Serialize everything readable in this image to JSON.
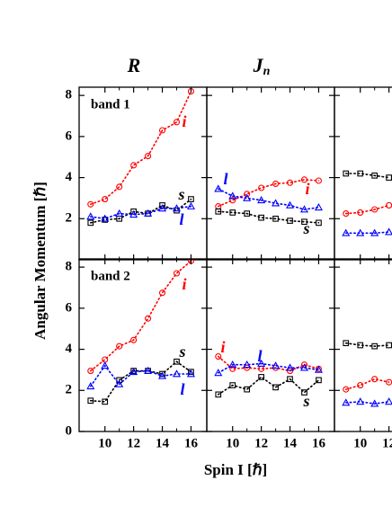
{
  "figure": {
    "ylabel": "Angular Momentum [ℏ]",
    "xlabel": "Spin I [ℏ]"
  },
  "chart_data": [
    {
      "type": "line",
      "title": "R",
      "annotation": "band 1",
      "x": [
        9,
        10,
        11,
        12,
        13,
        14,
        15,
        16
      ],
      "xlim": [
        8.2,
        17.1
      ],
      "xticks": [
        10,
        12,
        14,
        16
      ],
      "ylim": [
        0,
        8.4
      ],
      "yticks": [
        2,
        4,
        6,
        8
      ],
      "series": [
        {
          "name": "i",
          "color": "#ff0000",
          "marker": "circle",
          "values": [
            2.7,
            2.95,
            3.55,
            4.6,
            5.05,
            6.3,
            6.7,
            8.2
          ]
        },
        {
          "name": "s",
          "color": "#000000",
          "marker": "square",
          "values": [
            1.8,
            1.95,
            2.0,
            2.35,
            2.25,
            2.65,
            2.4,
            2.95
          ]
        },
        {
          "name": "l",
          "color": "#0000ff",
          "marker": "triangle",
          "values": [
            2.1,
            2.0,
            2.25,
            2.2,
            2.25,
            2.5,
            2.5,
            2.6
          ]
        }
      ]
    },
    {
      "type": "line",
      "title": "J",
      "title_subscript": "n",
      "x": [
        9,
        10,
        11,
        12,
        13,
        14,
        15,
        16
      ],
      "xlim": [
        8.2,
        17.1
      ],
      "xticks": [
        10,
        12,
        14,
        16
      ],
      "ylim": [
        0,
        8.4
      ],
      "yticks": [
        2,
        4,
        6,
        8
      ],
      "series": [
        {
          "name": "i",
          "color": "#ff0000",
          "marker": "circle",
          "values": [
            2.6,
            2.9,
            3.2,
            3.5,
            3.7,
            3.75,
            3.9,
            3.85
          ]
        },
        {
          "name": "s",
          "color": "#000000",
          "marker": "square",
          "values": [
            2.35,
            2.3,
            2.25,
            2.05,
            2.0,
            1.9,
            1.85,
            1.8
          ]
        },
        {
          "name": "l",
          "color": "#0000ff",
          "marker": "triangle",
          "values": [
            3.45,
            3.1,
            3.0,
            2.9,
            2.75,
            2.65,
            2.45,
            2.55
          ]
        }
      ]
    },
    {
      "type": "line",
      "x": [
        9,
        10,
        11,
        12
      ],
      "xlim": [
        8.2,
        17.1
      ],
      "xticks": [
        10,
        12
      ],
      "ylim": [
        0,
        8.4
      ],
      "yticks": [
        2,
        4,
        6,
        8
      ],
      "series": [
        {
          "color": "#ff0000",
          "marker": "circle",
          "values": [
            2.25,
            2.3,
            2.45,
            2.65
          ]
        },
        {
          "color": "#000000",
          "marker": "square",
          "values": [
            4.2,
            4.2,
            4.1,
            4.0
          ]
        },
        {
          "color": "#0000ff",
          "marker": "triangle",
          "values": [
            1.3,
            1.3,
            1.3,
            1.35
          ]
        }
      ]
    },
    {
      "type": "line",
      "annotation": "band 2",
      "x": [
        9,
        10,
        11,
        12,
        13,
        14,
        15,
        16
      ],
      "xlim": [
        8.2,
        17.1
      ],
      "xticks": [
        10,
        12,
        14,
        16
      ],
      "ylim": [
        0,
        8.4
      ],
      "yticks": [
        0,
        2,
        4,
        6,
        8
      ],
      "series": [
        {
          "name": "i",
          "color": "#ff0000",
          "marker": "circle",
          "values": [
            2.95,
            3.5,
            4.15,
            4.45,
            5.5,
            6.75,
            7.7,
            8.3
          ]
        },
        {
          "name": "s",
          "color": "#000000",
          "marker": "square",
          "values": [
            1.5,
            1.45,
            2.5,
            2.95,
            2.95,
            2.8,
            3.4,
            2.9
          ]
        },
        {
          "name": "l",
          "color": "#0000ff",
          "marker": "triangle",
          "values": [
            2.2,
            3.2,
            2.3,
            2.9,
            2.95,
            2.7,
            2.8,
            2.8
          ]
        }
      ]
    },
    {
      "type": "line",
      "x": [
        9,
        10,
        11,
        12,
        13,
        14,
        15,
        16
      ],
      "xlim": [
        8.2,
        17.1
      ],
      "xticks": [
        10,
        12,
        14,
        16
      ],
      "ylim": [
        0,
        8.4
      ],
      "yticks": [
        0,
        2,
        4,
        6,
        8
      ],
      "series": [
        {
          "name": "i",
          "color": "#ff0000",
          "marker": "circle",
          "values": [
            3.65,
            3.05,
            3.1,
            3.05,
            3.1,
            2.95,
            3.25,
            3.05
          ]
        },
        {
          "name": "s",
          "color": "#000000",
          "marker": "square",
          "values": [
            1.8,
            2.25,
            2.05,
            2.65,
            2.15,
            2.55,
            1.9,
            2.5
          ]
        },
        {
          "name": "l",
          "color": "#0000ff",
          "marker": "triangle",
          "values": [
            2.85,
            3.25,
            3.25,
            3.3,
            3.2,
            3.1,
            3.1,
            3.0
          ]
        }
      ]
    },
    {
      "type": "line",
      "x": [
        9,
        10,
        11,
        12
      ],
      "xlim": [
        8.2,
        17.1
      ],
      "xticks": [
        10,
        12
      ],
      "ylim": [
        0,
        8.4
      ],
      "yticks": [
        0,
        2,
        4,
        6,
        8
      ],
      "series": [
        {
          "color": "#ff0000",
          "marker": "circle",
          "values": [
            2.05,
            2.25,
            2.55,
            2.4
          ]
        },
        {
          "color": "#000000",
          "marker": "square",
          "values": [
            4.3,
            4.2,
            4.15,
            4.2
          ]
        },
        {
          "color": "#0000ff",
          "marker": "triangle",
          "values": [
            1.4,
            1.45,
            1.35,
            1.45
          ]
        }
      ]
    }
  ]
}
